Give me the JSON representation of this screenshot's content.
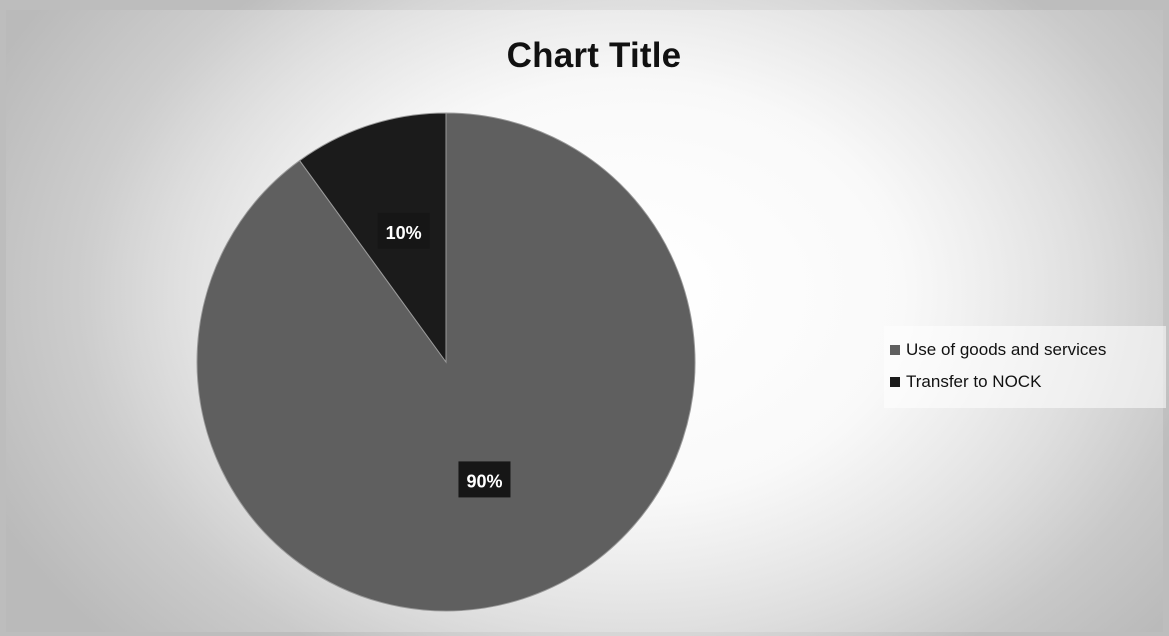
{
  "chart_data": {
    "type": "pie",
    "title": "Chart Title",
    "categories": [
      "Use of goods and services",
      "Transfer to NOCK"
    ],
    "values": [
      90,
      10
    ],
    "data_labels": [
      "90%",
      "10%"
    ],
    "colors": [
      "#5f5f5f",
      "#1b1b1b"
    ],
    "legend_position": "right"
  }
}
